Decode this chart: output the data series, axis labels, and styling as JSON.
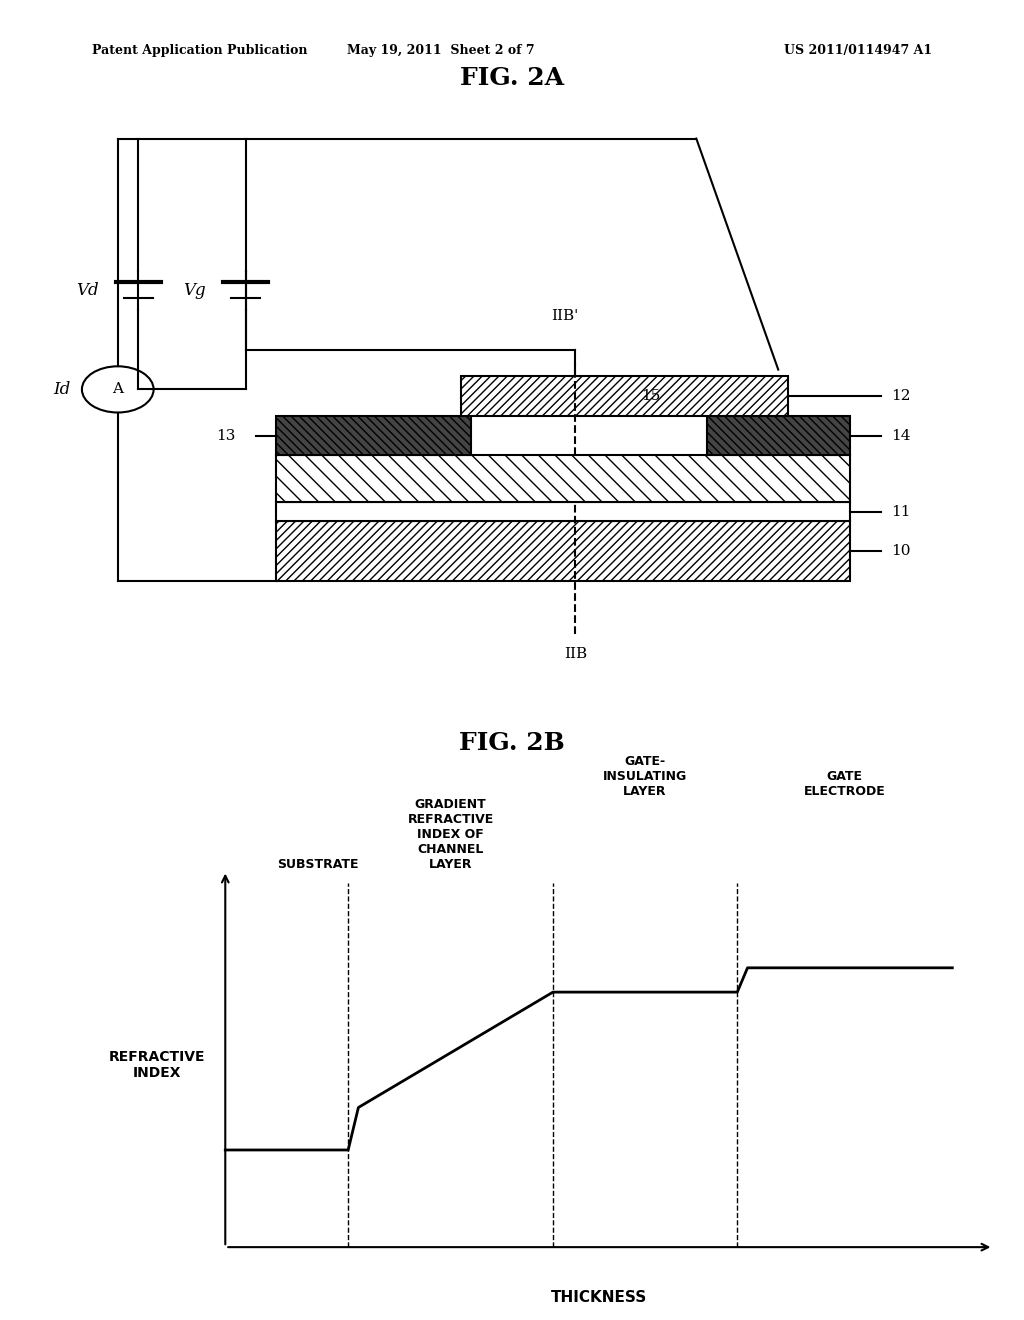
{
  "header_left": "Patent Application Publication",
  "header_center": "May 19, 2011  Sheet 2 of 7",
  "header_right": "US 2011/0114947 A1",
  "fig2a_title": "FIG. 2A",
  "fig2b_title": "FIG. 2B",
  "background_color": "#ffffff",
  "line_color": "#000000",
  "fig2b_xlabel": "THICKNESS",
  "fig2b_ylabel": "REFRACTIVE\nINDEX",
  "fig2b_labels": {
    "substrate": "SUBSTRATE",
    "gradient": "GRADIENT\nREFRACTIVE\nINDEX OF\nCHANNEL\nLAYER",
    "gate_insulating": "GATE-\nINSULATING\nLAYER",
    "gate_electrode": "GATE\nELECTRODE"
  }
}
